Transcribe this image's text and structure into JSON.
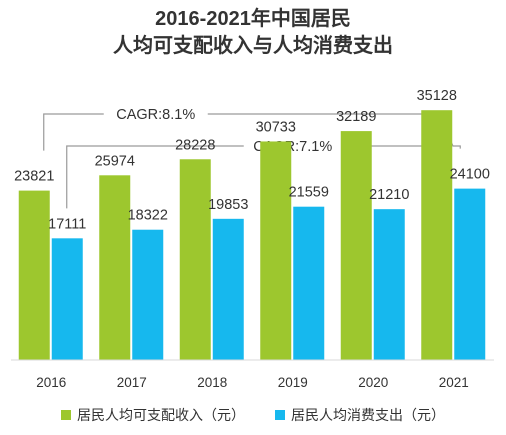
{
  "chart_data": {
    "type": "bar",
    "title": [
      "2016-2021年中国居民",
      "人均可支配收入与人均消费支出"
    ],
    "categories": [
      "2016",
      "2017",
      "2018",
      "2019",
      "2020",
      "2021"
    ],
    "series": [
      {
        "name": "居民人均可支配收入（元）",
        "values": [
          23821,
          25974,
          28228,
          30733,
          32189,
          35128
        ],
        "color": "#9DC72E"
      },
      {
        "name": "居民人均消费支出（元）",
        "values": [
          17111,
          18322,
          19853,
          21559,
          21210,
          24100
        ],
        "color": "#16B8EE"
      }
    ],
    "annotations": [
      {
        "text": "CAGR:8.1%",
        "series": "居民人均可支配收入（元）"
      },
      {
        "text": "CAGR:7.1%",
        "series": "居民人均消费支出（元）"
      }
    ],
    "ylim": [
      0,
      45000
    ],
    "legend_position": "bottom",
    "grid": false
  }
}
